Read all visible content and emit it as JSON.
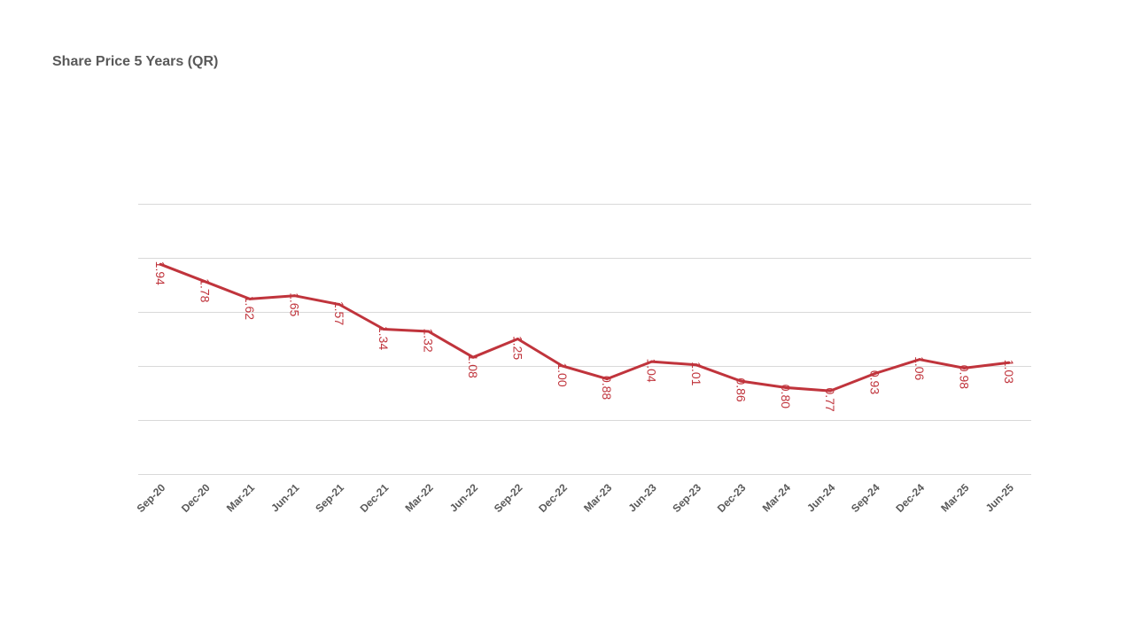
{
  "chart_data": {
    "type": "line",
    "title": "Share Price 5 Years (QR)",
    "xlabel": "",
    "ylabel": "",
    "categories": [
      "Sep-20",
      "Dec-20",
      "Mar-21",
      "Jun-21",
      "Sep-21",
      "Dec-21",
      "Mar-22",
      "Jun-22",
      "Sep-22",
      "Dec-22",
      "Mar-23",
      "Jun-23",
      "Sep-23",
      "Dec-23",
      "Mar-24",
      "Jun-24",
      "Sep-24",
      "Dec-24",
      "Mar-25",
      "Jun-25"
    ],
    "series": [
      {
        "values": [
          1.94,
          1.78,
          1.62,
          1.65,
          1.57,
          1.34,
          1.32,
          1.08,
          1.25,
          1.0,
          0.88,
          1.04,
          1.01,
          0.86,
          0.8,
          0.77,
          0.93,
          1.06,
          0.98,
          1.03
        ],
        "labels": [
          "1.94",
          "1.78",
          "1.62",
          "1.65",
          "1.57",
          "1.34",
          "1.32",
          "1.08",
          "1.25",
          "1.00",
          "0.88",
          "1.04",
          "1.01",
          "0.86",
          "0.80",
          "0.77",
          "0.93",
          "1.06",
          "0.98",
          "1.03"
        ],
        "color": "#c0343c"
      }
    ],
    "ylim": [
      0,
      2.5
    ],
    "y_gridline_step": 0.5,
    "y_tick_labels_visible": false,
    "grid": true,
    "legend": "none",
    "label_color": "#c0343c"
  }
}
